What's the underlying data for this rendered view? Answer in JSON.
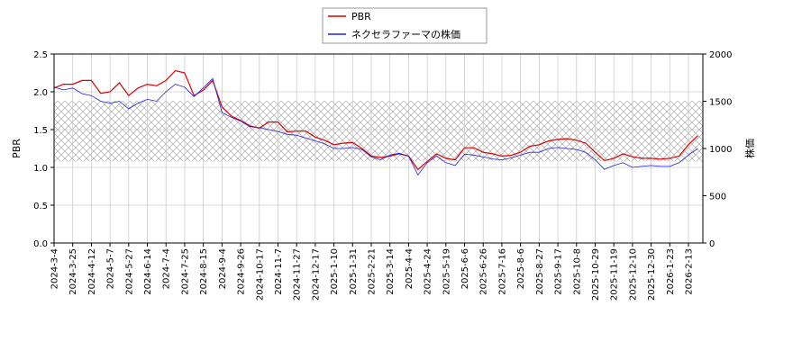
{
  "chart_data": {
    "type": "line",
    "x": [
      "2024-3-4",
      "2024-3-14",
      "2024-3-25",
      "2024-4-3",
      "2024-4-12",
      "2024-4-25",
      "2024-5-7",
      "2024-5-17",
      "2024-5-27",
      "2024-6-5",
      "2024-6-14",
      "2024-6-24",
      "2024-7-4",
      "2024-7-15",
      "2024-7-25",
      "2024-8-5",
      "2024-8-15",
      "2024-8-26",
      "2024-9-4",
      "2024-9-16",
      "2024-9-26",
      "2024-10-7",
      "2024-10-17",
      "2024-10-28",
      "2024-11-7",
      "2024-11-18",
      "2024-11-27",
      "2024-12-9",
      "2024-12-17",
      "2024-12-26",
      "2025-1-10",
      "2025-1-21",
      "2025-1-31",
      "2025-2-12",
      "2025-2-21",
      "2025-3-4",
      "2025-3-14",
      "2025-3-25",
      "2025-4-4",
      "2025-4-14",
      "2025-4-24",
      "2025-5-8",
      "2025-5-19",
      "2025-5-28",
      "2025-6-6",
      "2025-6-16",
      "2025-6-26",
      "2025-7-7",
      "2025-7-16",
      "2025-7-28",
      "2025-8-6",
      "2025-8-18",
      "2025-8-27",
      "2025-9-8",
      "2025-9-17",
      "2025-9-29",
      "2025-10-8",
      "2025-10-20",
      "2025-10-29",
      "2025-11-10",
      "2025-11-19",
      "2025-12-1",
      "2025-12-10",
      "2025-12-19",
      "2025-12-30",
      "2026-1-13",
      "2026-1-23",
      "2026-2-3",
      "2026-2-13",
      "2026-2-20"
    ],
    "series": [
      {
        "name": "PBR",
        "color": "#e00000",
        "axis": "y",
        "values": [
          2.05,
          2.1,
          2.1,
          2.15,
          2.15,
          1.98,
          2.0,
          2.12,
          1.95,
          2.05,
          2.1,
          2.08,
          2.15,
          2.28,
          2.25,
          1.95,
          2.02,
          2.15,
          1.8,
          1.68,
          1.62,
          1.55,
          1.52,
          1.6,
          1.6,
          1.47,
          1.48,
          1.48,
          1.4,
          1.36,
          1.3,
          1.32,
          1.33,
          1.25,
          1.15,
          1.13,
          1.15,
          1.18,
          1.15,
          0.97,
          1.08,
          1.18,
          1.12,
          1.1,
          1.26,
          1.26,
          1.2,
          1.18,
          1.15,
          1.16,
          1.2,
          1.28,
          1.3,
          1.35,
          1.37,
          1.38,
          1.36,
          1.32,
          1.2,
          1.09,
          1.12,
          1.18,
          1.14,
          1.12,
          1.12,
          1.11,
          1.12,
          1.15,
          1.3,
          1.42
        ]
      },
      {
        "name": "ネクセラファーマの株価",
        "color": "#2020e0",
        "axis": "y2",
        "values": [
          1650,
          1620,
          1640,
          1580,
          1560,
          1500,
          1480,
          1500,
          1420,
          1480,
          1520,
          1500,
          1600,
          1680,
          1650,
          1550,
          1640,
          1740,
          1380,
          1330,
          1290,
          1230,
          1220,
          1200,
          1180,
          1150,
          1140,
          1110,
          1080,
          1050,
          1000,
          1000,
          1010,
          990,
          910,
          880,
          930,
          950,
          920,
          720,
          850,
          920,
          850,
          820,
          940,
          930,
          910,
          890,
          880,
          900,
          930,
          960,
          960,
          1000,
          1010,
          1000,
          990,
          960,
          880,
          780,
          820,
          850,
          800,
          810,
          820,
          810,
          810,
          850,
          930,
          1000
        ]
      }
    ],
    "band": [
      1.08,
      1.88
    ],
    "ylabel": "PBR",
    "y2label": "株価",
    "ylim": [
      0,
      2.5
    ],
    "yticks": [
      {
        "value": 0,
        "label": "0.0"
      },
      {
        "value": 0.5,
        "label": "0.5"
      },
      {
        "value": 1,
        "label": "1.0"
      },
      {
        "value": 1.5,
        "label": "1.5"
      },
      {
        "value": 2,
        "label": "2.0"
      },
      {
        "value": 2.5,
        "label": "2.5"
      }
    ],
    "y2lim": [
      0,
      2000
    ],
    "y2ticks": [
      0,
      500,
      1000,
      1500,
      2000
    ],
    "xticks": [
      "2024-3-4",
      "2024-3-25",
      "2024-4-12",
      "2024-5-7",
      "2024-5-27",
      "2024-6-14",
      "2024-7-4",
      "2024-7-25",
      "2024-8-15",
      "2024-9-4",
      "2024-9-26",
      "2024-10-17",
      "2024-11-7",
      "2024-11-27",
      "2024-12-17",
      "2025-1-10",
      "2025-1-31",
      "2025-2-21",
      "2025-3-14",
      "2025-4-4",
      "2025-4-24",
      "2025-5-19",
      "2025-6-6",
      "2025-6-26",
      "2025-7-16",
      "2025-8-6",
      "2025-8-27",
      "2025-9-17",
      "2025-10-8",
      "2025-10-29",
      "2025-11-19",
      "2025-12-10",
      "2025-12-30",
      "2026-1-23",
      "2026-2-13"
    ],
    "grid": true,
    "legend": "top"
  }
}
